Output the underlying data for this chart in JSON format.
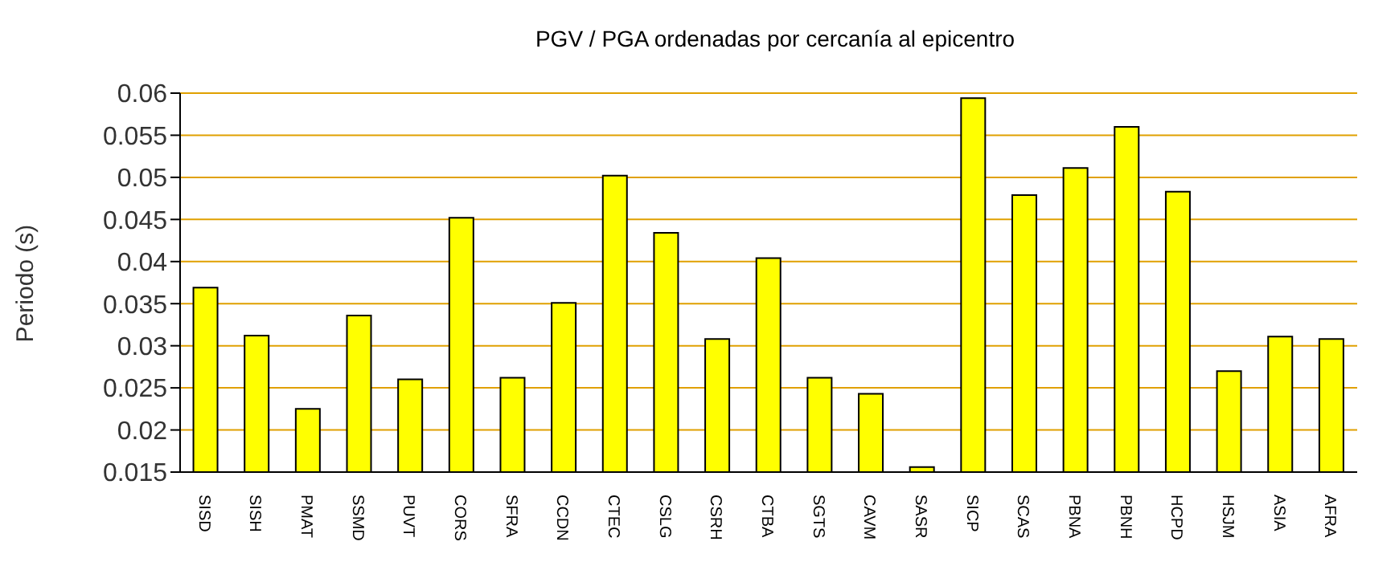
{
  "chart_data": {
    "type": "bar",
    "title": "PGV / PGA ordenadas por cercanía al epicentro",
    "ylabel": "Periodo (s)",
    "categories": [
      "SISD",
      "SISH",
      "PMAT",
      "SSMD",
      "PUVT",
      "CORS",
      "SFRA",
      "CCDN",
      "CTEC",
      "CSLG",
      "CSRH",
      "CTBA",
      "SGTS",
      "CAVM",
      "SASR",
      "SICP",
      "SCAS",
      "PBNA",
      "PBNH",
      "HCPD",
      "HSJM",
      "ASIA",
      "AFRA"
    ],
    "values": [
      0.0369,
      0.0312,
      0.0225,
      0.0336,
      0.026,
      0.0452,
      0.0262,
      0.0351,
      0.0502,
      0.0434,
      0.0308,
      0.0404,
      0.0262,
      0.0243,
      0.0156,
      0.0594,
      0.0479,
      0.0511,
      0.056,
      0.0483,
      0.027,
      0.0311,
      0.0308
    ],
    "color": "#ffff00",
    "ylim": [
      0.015,
      0.06
    ],
    "yticks": [
      0.015,
      0.02,
      0.025,
      0.03,
      0.035,
      0.04,
      0.045,
      0.05,
      0.055,
      0.06
    ],
    "grid": "y",
    "legend": false
  }
}
